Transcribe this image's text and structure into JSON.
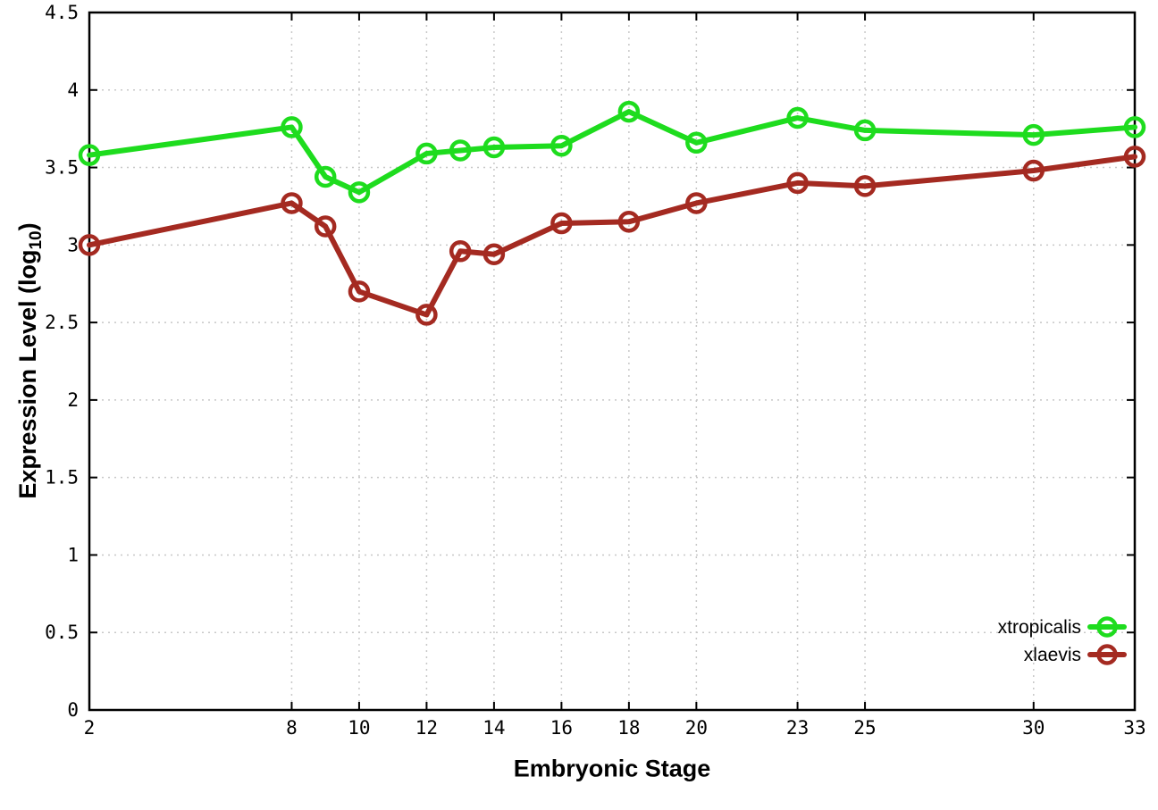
{
  "chart_data": {
    "type": "line",
    "title": "",
    "xlabel": "Embryonic Stage",
    "ylabel": {
      "main": "Expression Level (log",
      "sub": "10",
      "end": ")"
    },
    "xlim": [
      2,
      33
    ],
    "ylim": [
      0,
      4.5
    ],
    "grid": true,
    "legend_position": "bottom-right",
    "x": [
      2,
      8,
      9,
      10,
      12,
      13,
      14,
      16,
      18,
      20,
      23,
      25,
      30,
      33
    ],
    "series": [
      {
        "name": "xtropicalis",
        "color": "#1edc1e",
        "values": [
          3.58,
          3.76,
          3.44,
          3.34,
          3.59,
          3.61,
          3.63,
          3.64,
          3.86,
          3.66,
          3.82,
          3.74,
          3.71,
          3.76
        ]
      },
      {
        "name": "xlaevis",
        "color": "#a42a21",
        "values": [
          3.0,
          3.27,
          3.12,
          2.7,
          2.55,
          2.96,
          2.94,
          3.14,
          3.15,
          3.27,
          3.4,
          3.38,
          3.48,
          3.57
        ]
      }
    ],
    "xticks": {
      "values": [
        2,
        8,
        10,
        12,
        14,
        16,
        18,
        20,
        23,
        25,
        30,
        33
      ],
      "labels": [
        "2",
        "8",
        "10",
        "12",
        "14",
        "16",
        "18",
        "20",
        "23",
        "25",
        "30",
        "33"
      ]
    },
    "yticks": {
      "values": [
        0,
        0.5,
        1,
        1.5,
        2,
        2.5,
        3,
        3.5,
        4,
        4.5
      ],
      "labels": [
        "0",
        "0.5",
        "1",
        "1.5",
        "2",
        "2.5",
        "3",
        "3.5",
        "4",
        "4.5"
      ]
    },
    "colors": {
      "grid": "#c8c8c8",
      "axis": "#000000",
      "background": "#ffffff"
    }
  }
}
